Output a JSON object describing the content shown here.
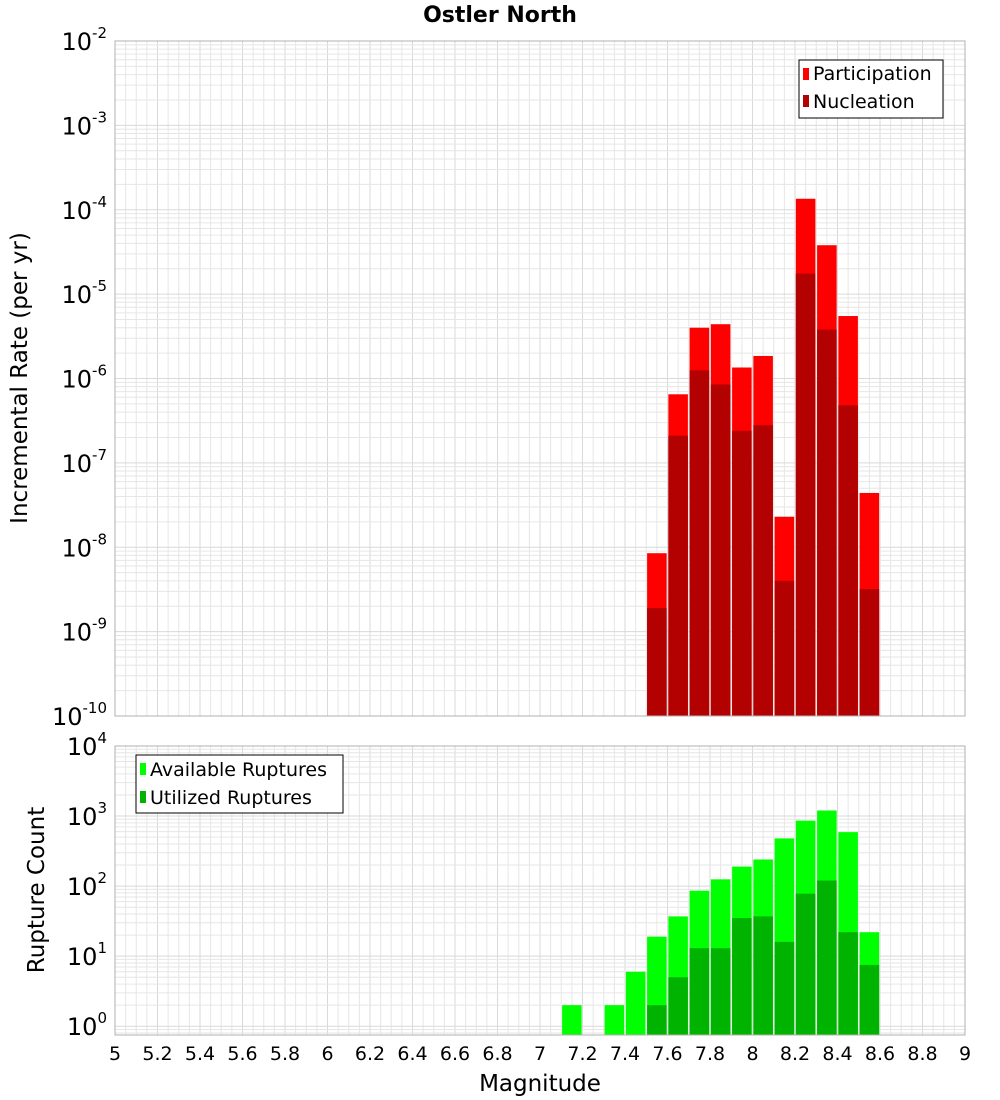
{
  "chart_data": [
    {
      "type": "bar",
      "title": "Ostler North",
      "xlabel": "",
      "ylabel": "Incremental Rate (per yr)",
      "yscale": "log",
      "ylim": [
        1e-10,
        0.01
      ],
      "xlim": [
        5,
        9
      ],
      "grid": true,
      "legend_position": "top-right",
      "x": [
        7.55,
        7.65,
        7.75,
        7.85,
        7.95,
        8.05,
        8.15,
        8.25,
        8.35,
        8.45,
        8.55
      ],
      "series": [
        {
          "name": "Participation",
          "color": "#ff0000",
          "values": [
            8.5e-09,
            6.5e-07,
            4e-06,
            4.4e-06,
            1.35e-06,
            1.85e-06,
            2.3e-08,
            0.000135,
            3.8e-05,
            5.5e-06,
            4.4e-08
          ]
        },
        {
          "name": "Nucleation",
          "color": "#b30000",
          "values": [
            1.9e-09,
            2.1e-07,
            1.25e-06,
            8.5e-07,
            2.4e-07,
            2.8e-07,
            4e-09,
            1.75e-05,
            3.8e-06,
            4.8e-07,
            3.2e-09
          ]
        }
      ]
    },
    {
      "type": "bar",
      "title": "",
      "xlabel": "Magnitude",
      "ylabel": "Rupture Count",
      "yscale": "log",
      "ylim": [
        0.75,
        10000
      ],
      "xlim": [
        5,
        9
      ],
      "grid": true,
      "legend_position": "top-left",
      "x": [
        7.15,
        7.25,
        7.35,
        7.45,
        7.55,
        7.65,
        7.75,
        7.85,
        7.95,
        8.05,
        8.15,
        8.25,
        8.35,
        8.45,
        8.55
      ],
      "series": [
        {
          "name": "Available Ruptures",
          "color": "#00ff00",
          "values": [
            2,
            0,
            2,
            6,
            19,
            37,
            86,
            125,
            190,
            240,
            480,
            860,
            1200,
            590,
            22
          ]
        },
        {
          "name": "Utilized Ruptures",
          "color": "#00b300",
          "values": [
            0,
            0,
            0,
            0,
            2,
            5,
            13,
            13,
            35,
            37,
            16,
            78,
            120,
            22,
            7.5
          ]
        }
      ]
    }
  ],
  "x_ticks": [
    "5",
    "5.2",
    "5.4",
    "5.6",
    "5.8",
    "6",
    "6.2",
    "6.4",
    "6.6",
    "6.8",
    "7",
    "7.2",
    "7.4",
    "7.6",
    "7.8",
    "8",
    "8.2",
    "8.4",
    "8.6",
    "8.8",
    "9"
  ],
  "top_y_ticks": [
    {
      "base": "10",
      "exp": "-2"
    },
    {
      "base": "10",
      "exp": "-3"
    },
    {
      "base": "10",
      "exp": "-4"
    },
    {
      "base": "10",
      "exp": "-5"
    },
    {
      "base": "10",
      "exp": "-6"
    },
    {
      "base": "10",
      "exp": "-7"
    },
    {
      "base": "10",
      "exp": "-8"
    },
    {
      "base": "10",
      "exp": "-9"
    },
    {
      "base": "10",
      "exp": "-10"
    }
  ],
  "bottom_y_ticks": [
    {
      "base": "10",
      "exp": "4"
    },
    {
      "base": "10",
      "exp": "3"
    },
    {
      "base": "10",
      "exp": "2"
    },
    {
      "base": "10",
      "exp": "1"
    },
    {
      "base": "10",
      "exp": "0"
    }
  ]
}
